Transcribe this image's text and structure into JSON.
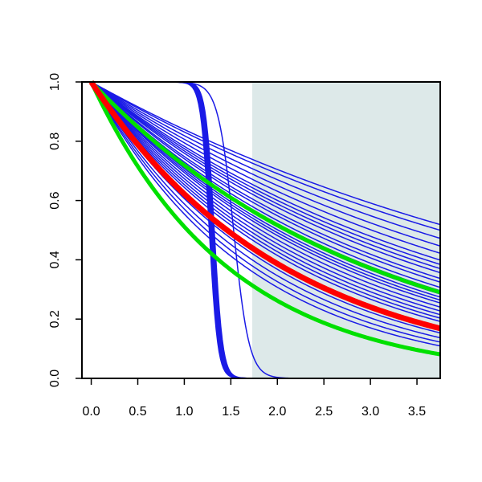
{
  "chart_data": {
    "type": "line",
    "title": "",
    "xlabel": "",
    "ylabel": "",
    "xlim": [
      -0.1,
      3.75
    ],
    "ylim": [
      0.0,
      1.0
    ],
    "x_ticks": [
      {
        "value": 0.0,
        "label": "0.0"
      },
      {
        "value": 0.5,
        "label": "0.5"
      },
      {
        "value": 1.0,
        "label": "1.0"
      },
      {
        "value": 1.5,
        "label": "1.5"
      },
      {
        "value": 2.0,
        "label": "2.0"
      },
      {
        "value": 2.5,
        "label": "2.5"
      },
      {
        "value": 3.0,
        "label": "3.0"
      },
      {
        "value": 3.5,
        "label": "3.5"
      }
    ],
    "y_ticks": [
      {
        "value": 0.0,
        "label": "0.0"
      },
      {
        "value": 0.2,
        "label": "0.2"
      },
      {
        "value": 0.4,
        "label": "0.4"
      },
      {
        "value": 0.6,
        "label": "0.6"
      },
      {
        "value": 0.8,
        "label": "0.8"
      },
      {
        "value": 1.0,
        "label": "1.0"
      }
    ],
    "grid": false,
    "legend": "none",
    "shaded_region": {
      "x_from": 1.73,
      "x_to": 3.75,
      "color": "#dde9e9"
    },
    "colors": {
      "blue": "#1a1ae6",
      "red": "#ff0000",
      "green": "#00e000"
    },
    "families": [
      {
        "kind": "exponential",
        "color": "blue",
        "width": 1.5,
        "rates": [
          0.175,
          0.185,
          0.2,
          0.215,
          0.23,
          0.245,
          0.255,
          0.265,
          0.275,
          0.29,
          0.3,
          0.315,
          0.325,
          0.335,
          0.345,
          0.355,
          0.365,
          0.38,
          0.395,
          0.41,
          0.425,
          0.44,
          0.47,
          0.5,
          0.53,
          0.56,
          0.59
        ]
      },
      {
        "kind": "step",
        "color": "blue",
        "width": 1.8,
        "centers": [
          1.27,
          1.28,
          1.29,
          1.3,
          1.31,
          1.32
        ],
        "steepness": 22
      },
      {
        "kind": "step",
        "color": "blue",
        "width": 1.5,
        "centers": [
          1.53
        ],
        "steepness": 12
      }
    ],
    "series": [
      {
        "kind": "exponential",
        "color": "green",
        "width": 5,
        "rate": 0.33
      },
      {
        "kind": "exponential",
        "color": "green",
        "width": 5,
        "rate": 0.67
      },
      {
        "kind": "exponential",
        "color": "red",
        "width": 7,
        "rate": 0.475
      }
    ]
  }
}
